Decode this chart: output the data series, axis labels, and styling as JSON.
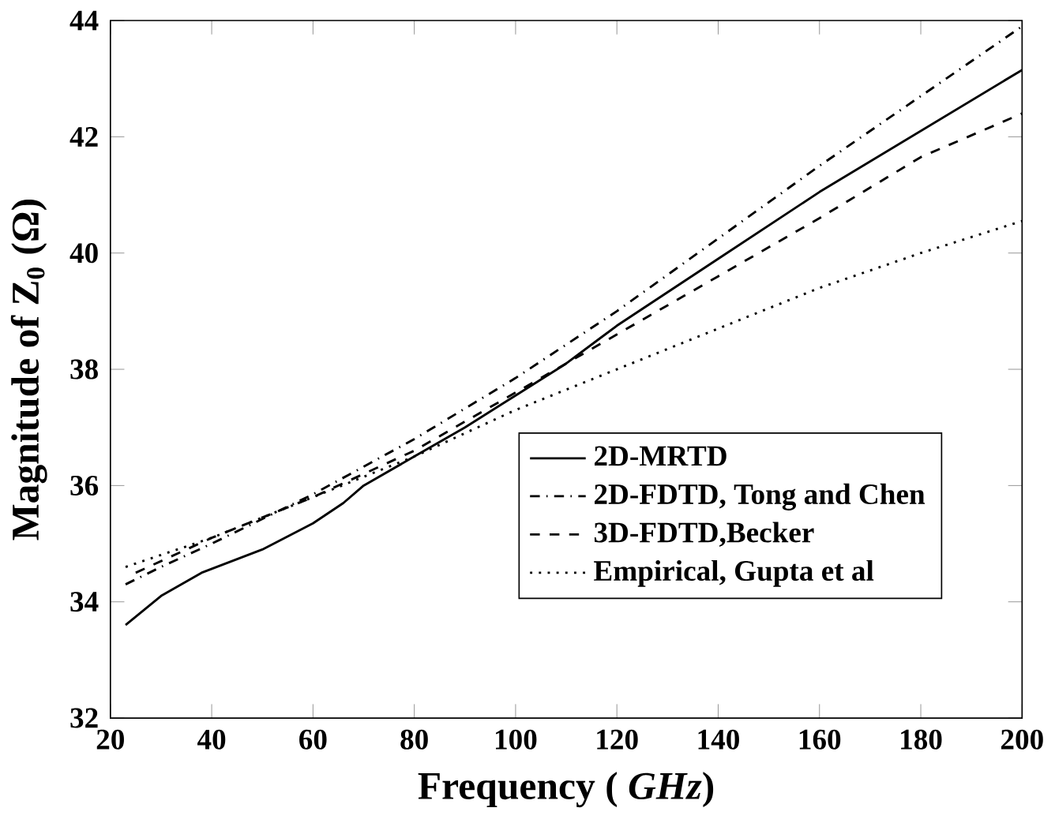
{
  "chart_data": {
    "type": "line",
    "xlabel": "Frequency ( *GHz*)",
    "ylabel": "Magnitude of Z$_{0}$ (Ω)",
    "xlim": [
      20,
      200
    ],
    "ylim": [
      32,
      44
    ],
    "xticks": [
      20,
      40,
      60,
      80,
      100,
      120,
      140,
      160,
      180,
      200
    ],
    "yticks": [
      32,
      34,
      36,
      38,
      40,
      42,
      44
    ],
    "legend": "right",
    "marker": "none",
    "series": [
      {
        "name": "2D-MRTD",
        "color": "#000000",
        "line_style": "solid",
        "x": [
          23,
          30,
          38,
          50,
          60,
          66,
          70,
          80,
          90,
          100,
          110,
          120,
          140,
          160,
          180,
          200
        ],
        "values": [
          33.6,
          34.1,
          34.5,
          34.9,
          35.35,
          35.7,
          36.0,
          36.5,
          37.0,
          37.55,
          38.1,
          38.75,
          39.9,
          41.05,
          42.1,
          43.15
        ]
      },
      {
        "name": "2D-FDTD, Tong and Chen",
        "color": "#000000",
        "line_style": "dashdot",
        "x": [
          23,
          30,
          40,
          60,
          80,
          100,
          120,
          140,
          160,
          180,
          200
        ],
        "values": [
          34.3,
          34.6,
          35.0,
          35.85,
          36.8,
          37.85,
          39.0,
          40.25,
          41.5,
          42.7,
          43.9
        ]
      },
      {
        "name": "3D-FDTD,Becker",
        "color": "#000000",
        "line_style": "dashed",
        "x": [
          25,
          40,
          60,
          80,
          100,
          120,
          140,
          160,
          180,
          200
        ],
        "values": [
          34.5,
          35.1,
          35.8,
          36.6,
          37.6,
          38.6,
          39.6,
          40.6,
          41.65,
          42.4
        ]
      },
      {
        "name": "Empirical, Gupta et al",
        "color": "#000000",
        "line_style": "dotted",
        "x": [
          23,
          40,
          60,
          80,
          100,
          120,
          140,
          160,
          180,
          200
        ],
        "values": [
          34.6,
          35.1,
          35.8,
          36.5,
          37.3,
          38.0,
          38.7,
          39.4,
          40.0,
          40.55
        ]
      }
    ]
  }
}
